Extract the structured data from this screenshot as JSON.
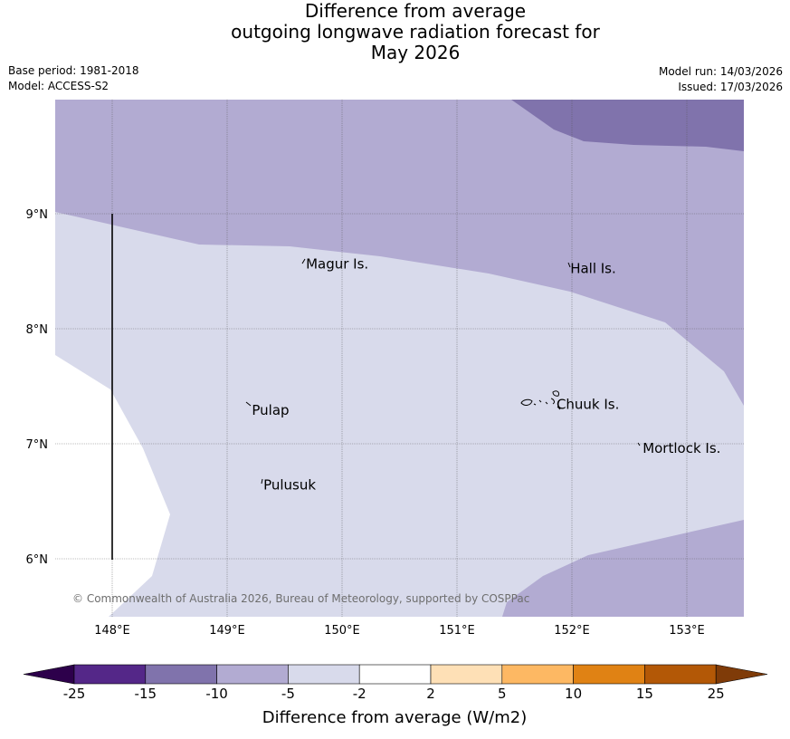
{
  "title": {
    "line1": "Difference from average",
    "line2": "outgoing longwave radiation forecast for",
    "line3": "May 2026"
  },
  "meta": {
    "base_period": "Base period: 1981-2018",
    "model": "Model: ACCESS-S2",
    "model_run": "Model run: 14/03/2026",
    "issued": "Issued: 17/03/2026"
  },
  "map": {
    "lon_range": [
      147.5,
      153.5
    ],
    "lat_range": [
      5.5,
      10.0
    ],
    "lon_ticks": [
      "148°E",
      "149°E",
      "150°E",
      "151°E",
      "152°E",
      "153°E"
    ],
    "lat_ticks": [
      "9°N",
      "8°N",
      "7°N",
      "6°N"
    ],
    "places": [
      {
        "name": "Magur Is.",
        "lon": 149.67,
        "lat": 8.57
      },
      {
        "name": "Hall Is.",
        "lon": 151.97,
        "lat": 8.53
      },
      {
        "name": "Pulap",
        "lon": 149.2,
        "lat": 7.3
      },
      {
        "name": "Chuuk Is.",
        "lon": 151.85,
        "lat": 7.35
      },
      {
        "name": "Mortlock Is.",
        "lon": 152.6,
        "lat": 6.97
      },
      {
        "name": "Pulusuk",
        "lon": 149.3,
        "lat": 6.65
      }
    ],
    "copyright": "© Commonwealth of Australia 2026, Bureau of Meteorology, supported by COSPPac"
  },
  "colorbar": {
    "title": "Difference from average (W/m2)",
    "labels": [
      "-25",
      "-15",
      "-10",
      "-5",
      "-2",
      "2",
      "5",
      "10",
      "15",
      "25"
    ],
    "colors": [
      "#2d004b",
      "#542788",
      "#8073ac",
      "#b2abd2",
      "#d8daeb",
      "#ffffff",
      "#fee0b6",
      "#fdb863",
      "#e08214",
      "#b35806",
      "#7f3b08"
    ]
  }
}
